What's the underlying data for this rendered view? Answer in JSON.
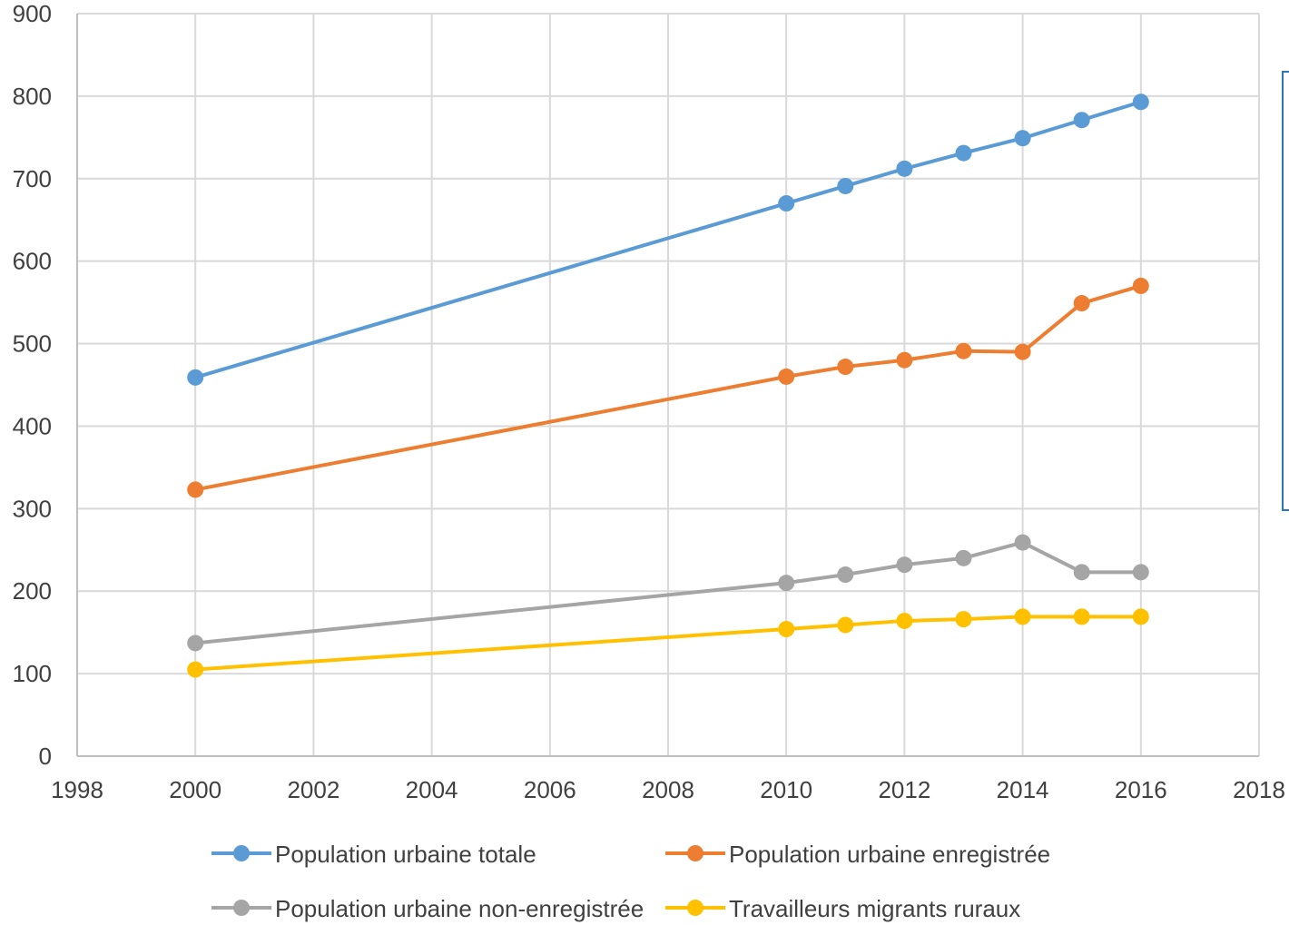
{
  "chart_data": {
    "type": "line",
    "title": "",
    "xlabel": "",
    "ylabel": "",
    "xlim": [
      1998,
      2018
    ],
    "ylim": [
      0,
      900
    ],
    "x_ticks": [
      "1998",
      "2000",
      "2002",
      "2004",
      "2006",
      "2008",
      "2010",
      "2012",
      "2014",
      "2016",
      "2018"
    ],
    "y_ticks": [
      "0",
      "100",
      "200",
      "300",
      "400",
      "500",
      "600",
      "700",
      "800",
      "900"
    ],
    "grid": true,
    "legend_position": "bottom",
    "x": [
      2000,
      2010,
      2011,
      2012,
      2013,
      2014,
      2015,
      2016
    ],
    "series": [
      {
        "name": "Population urbaine totale",
        "color": "#5b9bd5",
        "values": [
          459,
          670,
          691,
          712,
          731,
          749,
          771,
          793
        ]
      },
      {
        "name": "Population urbaine enregistrée",
        "color": "#ed7d31",
        "values": [
          323,
          460,
          472,
          480,
          491,
          490,
          549,
          570
        ]
      },
      {
        "name": "Population urbaine non-enregistrée",
        "color": "#a5a5a5",
        "values": [
          137,
          210,
          220,
          232,
          240,
          259,
          223,
          223
        ]
      },
      {
        "name": "Travailleurs migrants ruraux",
        "color": "#ffc000",
        "values": [
          105,
          154,
          159,
          164,
          166,
          169,
          169,
          169
        ]
      }
    ]
  },
  "side_panel": {
    "border_color": "#2e75b6"
  }
}
